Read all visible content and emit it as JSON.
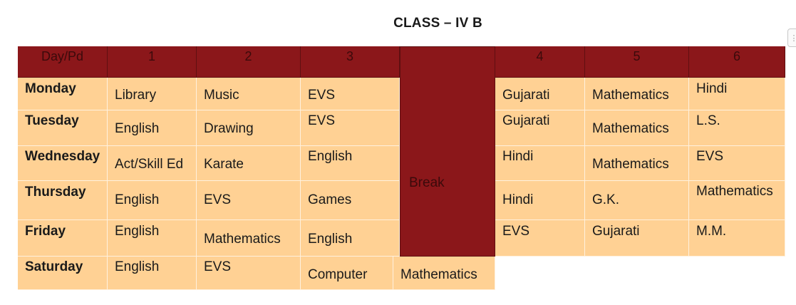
{
  "title": "CLASS – IV B",
  "header": [
    "Day/Pd",
    "1",
    "2",
    "3",
    "4",
    "5",
    "6"
  ],
  "break_label": "Break",
  "rows": [
    {
      "day": "Monday",
      "cells": [
        "Library",
        "Music",
        "EVS",
        "Gujarati",
        "Mathematics",
        "Hindi"
      ]
    },
    {
      "day": "Tuesday",
      "cells": [
        "English",
        "Drawing",
        "EVS",
        "Gujarati",
        "Mathematics",
        "L.S."
      ]
    },
    {
      "day": "Wednesday",
      "cells": [
        "Act/Skill Ed",
        "Karate",
        "English",
        "Hindi",
        "Mathematics",
        "EVS"
      ]
    },
    {
      "day": "Thursday",
      "cells": [
        "English",
        "EVS",
        "Games",
        "Hindi",
        "G.K.",
        "Mathematics"
      ]
    },
    {
      "day": "Friday",
      "cells": [
        "English",
        "Mathematics",
        "English",
        "EVS",
        "Gujarati",
        "M.M."
      ]
    },
    {
      "day": "Saturday",
      "cells": [
        "English",
        "EVS",
        "Computer",
        "Mathematics"
      ]
    }
  ],
  "menu_icon": "vertical-dots-icon"
}
